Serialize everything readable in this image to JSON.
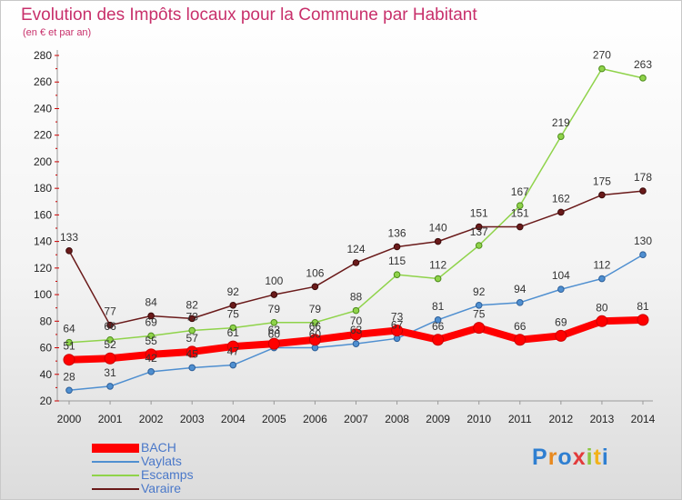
{
  "header": {
    "title": "Evolution des Impôts locaux pour la Commune par Habitant",
    "subtitle": "(en € et par an)"
  },
  "logo": {
    "text": "Proxiti"
  },
  "chart_data": {
    "type": "line",
    "title": "Evolution des Impôts locaux pour la Commune par Habitant",
    "subtitle": "(en € et par an)",
    "x": [
      2000,
      2001,
      2002,
      2003,
      2004,
      2005,
      2006,
      2007,
      2008,
      2009,
      2010,
      2011,
      2012,
      2013,
      2014
    ],
    "ylim": [
      20,
      280
    ],
    "yticks": [
      20,
      40,
      60,
      80,
      100,
      120,
      140,
      160,
      180,
      200,
      220,
      240,
      260,
      280
    ],
    "legend_position": "bottom-left",
    "grid": false,
    "series": [
      {
        "name": "BACH",
        "color": "#ff0000",
        "values": [
          51,
          52,
          55,
          57,
          61,
          63,
          66,
          70,
          73,
          66,
          75,
          66,
          69,
          80,
          81
        ]
      },
      {
        "name": "Vaylats",
        "color": "#4f8fd0",
        "values": [
          28,
          31,
          42,
          45,
          47,
          60,
          60,
          63,
          67,
          81,
          92,
          94,
          104,
          112,
          130
        ]
      },
      {
        "name": "Escamps",
        "color": "#8fd34a",
        "values": [
          64,
          66,
          69,
          73,
          75,
          79,
          79,
          88,
          115,
          112,
          137,
          167,
          219,
          270,
          263
        ]
      },
      {
        "name": "Varaire",
        "color": "#6a1a1a",
        "values": [
          133,
          77,
          84,
          82,
          92,
          100,
          106,
          124,
          136,
          140,
          151,
          151,
          162,
          175,
          178
        ]
      }
    ],
    "annotations": [
      {
        "series": "BACH",
        "values": [
          "51",
          "52",
          "55",
          "57",
          "61",
          "63",
          "66",
          "70",
          "73",
          "66",
          "75",
          "66",
          "69",
          "80",
          "81"
        ]
      },
      {
        "series": "Vaylats",
        "values": [
          "28",
          "31",
          "42",
          "45",
          "47",
          "60",
          "60",
          "63",
          "67",
          "81",
          "92",
          "94",
          "104",
          "112",
          "130"
        ]
      },
      {
        "series": "Escamps",
        "values": [
          "64",
          "66",
          "69",
          "73",
          "75",
          "79",
          "79",
          "88",
          "115",
          "112",
          "137",
          "167",
          "219",
          "270",
          "263"
        ]
      },
      {
        "series": "Varaire",
        "values": [
          "133",
          "77",
          "84",
          "82",
          "92",
          "100",
          "106",
          "124",
          "136",
          "140",
          "151",
          "151",
          "162",
          "175",
          "178"
        ]
      }
    ]
  }
}
